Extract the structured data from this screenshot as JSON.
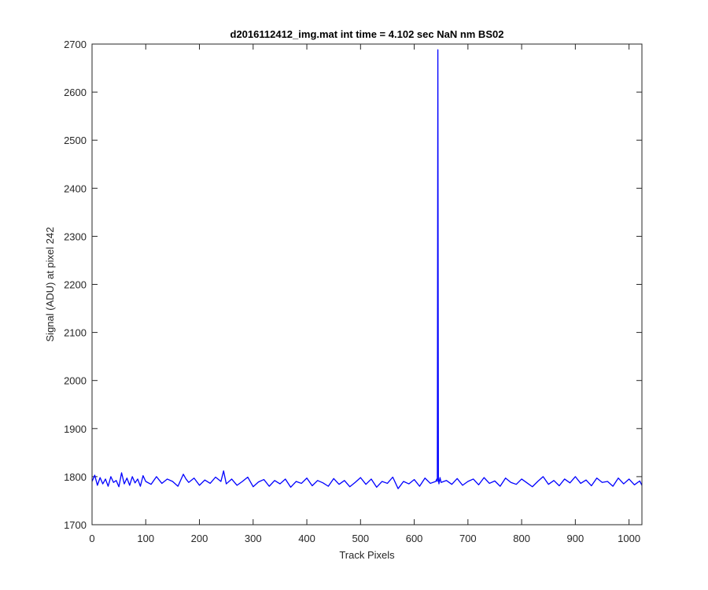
{
  "chart_data": {
    "type": "line",
    "title": "d2016112412_img.mat int time = 4.102 sec  NaN nm BS02",
    "xlabel": "Track Pixels",
    "ylabel": "Signal (ADU) at pixel 242",
    "xlim": [
      0,
      1024
    ],
    "ylim": [
      1700,
      2700
    ],
    "xticks": [
      0,
      100,
      200,
      300,
      400,
      500,
      600,
      700,
      800,
      900,
      1000
    ],
    "yticks": [
      1700,
      1800,
      1900,
      2000,
      2100,
      2200,
      2300,
      2400,
      2500,
      2600,
      2700
    ],
    "grid": false,
    "box": true,
    "series": [
      {
        "color": "#0000ff",
        "x": [
          0,
          5,
          10,
          15,
          20,
          25,
          30,
          35,
          40,
          45,
          50,
          55,
          60,
          65,
          70,
          75,
          80,
          85,
          90,
          95,
          100,
          110,
          120,
          130,
          140,
          150,
          160,
          170,
          175,
          180,
          190,
          200,
          210,
          220,
          230,
          240,
          245,
          250,
          260,
          270,
          280,
          290,
          300,
          310,
          320,
          330,
          340,
          350,
          360,
          370,
          380,
          390,
          400,
          410,
          420,
          430,
          440,
          450,
          460,
          470,
          480,
          490,
          500,
          510,
          520,
          530,
          540,
          550,
          560,
          570,
          580,
          590,
          600,
          610,
          620,
          630,
          640,
          642,
          643,
          644,
          645,
          646,
          648,
          650,
          660,
          670,
          680,
          690,
          700,
          710,
          720,
          730,
          740,
          750,
          760,
          770,
          780,
          790,
          800,
          810,
          820,
          830,
          840,
          850,
          860,
          870,
          880,
          890,
          900,
          910,
          920,
          930,
          940,
          950,
          960,
          970,
          980,
          990,
          1000,
          1010,
          1020,
          1024
        ],
        "y": [
          1790,
          1803,
          1782,
          1798,
          1785,
          1795,
          1780,
          1800,
          1788,
          1792,
          1779,
          1808,
          1785,
          1797,
          1782,
          1800,
          1787,
          1795,
          1780,
          1802,
          1790,
          1784,
          1800,
          1786,
          1795,
          1790,
          1780,
          1805,
          1795,
          1788,
          1797,
          1782,
          1793,
          1786,
          1799,
          1790,
          1812,
          1785,
          1795,
          1782,
          1790,
          1799,
          1779,
          1789,
          1794,
          1780,
          1792,
          1785,
          1795,
          1778,
          1790,
          1786,
          1797,
          1781,
          1792,
          1787,
          1780,
          1796,
          1784,
          1792,
          1779,
          1788,
          1798,
          1784,
          1795,
          1778,
          1790,
          1786,
          1799,
          1775,
          1790,
          1785,
          1794,
          1780,
          1797,
          1786,
          1790,
          1795,
          1790,
          2688,
          1795,
          1785,
          1798,
          1788,
          1792,
          1784,
          1796,
          1782,
          1790,
          1795,
          1783,
          1798,
          1786,
          1791,
          1780,
          1797,
          1788,
          1784,
          1795,
          1787,
          1779,
          1790,
          1800,
          1784,
          1792,
          1781,
          1795,
          1787,
          1800,
          1786,
          1793,
          1781,
          1797,
          1788,
          1790,
          1780,
          1797,
          1785,
          1795,
          1783,
          1791,
          1782
        ]
      }
    ]
  }
}
